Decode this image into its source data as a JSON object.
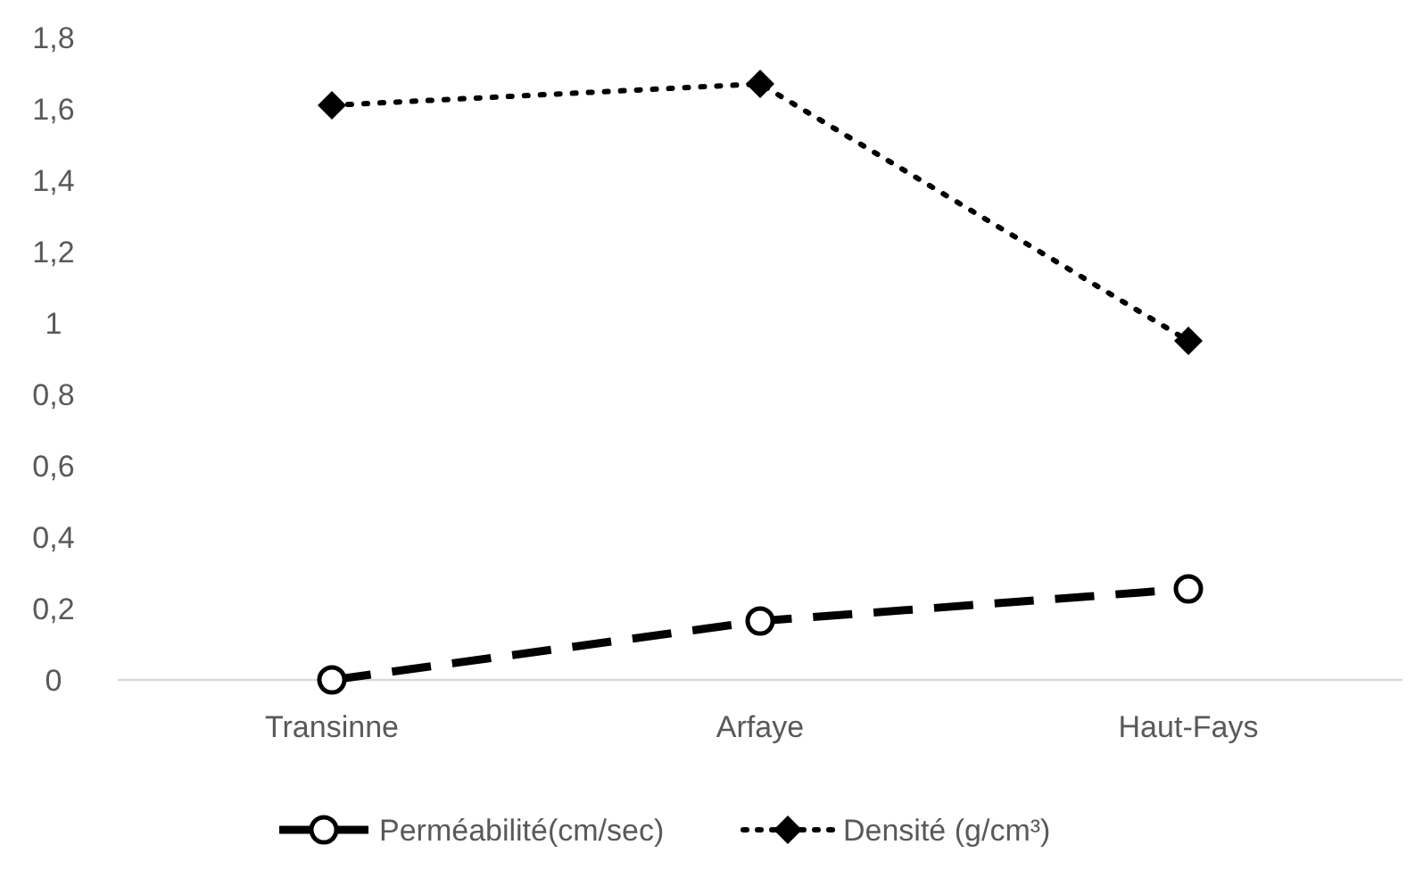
{
  "chart_data": {
    "type": "line",
    "categories": [
      "Transinne",
      "Arfaye",
      "Haut-Fays"
    ],
    "series": [
      {
        "name": "Perméabilité(cm/sec)",
        "color": "#000000",
        "values": [
          0,
          0.165,
          0.255
        ],
        "marker": "circle",
        "line_style": "dashed"
      },
      {
        "name": "Densité (g/cm³)",
        "color": "#000000",
        "values": [
          1.61,
          1.67,
          0.95
        ],
        "marker": "diamond",
        "line_style": "dotted"
      }
    ],
    "ylim": [
      0,
      1.8
    ],
    "yticks": [
      0,
      {
        "value": 0.2,
        "label": "0,2"
      },
      {
        "value": 0.4,
        "label": "0,4"
      },
      {
        "value": 0.6,
        "label": "0,6"
      },
      {
        "value": 0.8,
        "label": "0,8"
      },
      1,
      {
        "value": 1.2,
        "label": "1,2"
      },
      {
        "value": 1.4,
        "label": "1,4"
      },
      {
        "value": 1.6,
        "label": "1,6"
      },
      {
        "value": 1.8,
        "label": "1,8"
      }
    ],
    "grid": false,
    "legend": "bottom"
  }
}
